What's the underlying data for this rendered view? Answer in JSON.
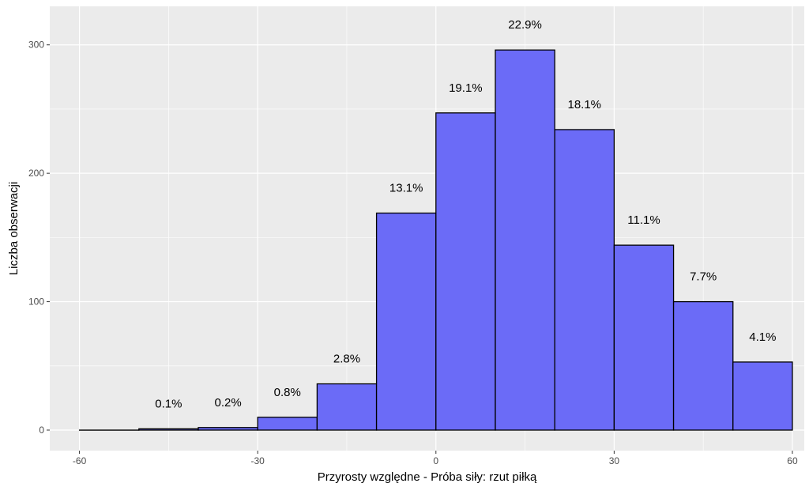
{
  "chart_data": {
    "type": "bar",
    "title": "",
    "xlabel": "Przyrosty względne -  Próba siły: rzut piłką",
    "ylabel": "Liczba obserwacji",
    "xlim": [
      -65,
      62
    ],
    "ylim": [
      -16,
      330
    ],
    "x_ticks": [
      -60,
      -30,
      0,
      30,
      60
    ],
    "y_ticks": [
      0,
      100,
      200,
      300
    ],
    "grid": true,
    "bins": [
      {
        "from": -60,
        "to": -50,
        "value": 0,
        "label": ""
      },
      {
        "from": -50,
        "to": -40,
        "value": 1,
        "label": "0.1%"
      },
      {
        "from": -40,
        "to": -30,
        "value": 2,
        "label": "0.2%"
      },
      {
        "from": -30,
        "to": -20,
        "value": 10,
        "label": "0.8%"
      },
      {
        "from": -20,
        "to": -10,
        "value": 36,
        "label": "2.8%"
      },
      {
        "from": -10,
        "to": 0,
        "value": 169,
        "label": "13.1%"
      },
      {
        "from": 0,
        "to": 10,
        "value": 247,
        "label": "19.1%"
      },
      {
        "from": 10,
        "to": 20,
        "value": 296,
        "label": "22.9%"
      },
      {
        "from": 20,
        "to": 30,
        "value": 234,
        "label": "18.1%"
      },
      {
        "from": 30,
        "to": 40,
        "value": 144,
        "label": "11.1%"
      },
      {
        "from": 40,
        "to": 50,
        "value": 100,
        "label": "7.7%"
      },
      {
        "from": 50,
        "to": 60,
        "value": 53,
        "label": "4.1%"
      }
    ],
    "colors": {
      "bar_fill": "#6b6bf7",
      "bar_stroke": "#000000",
      "panel": "#ebebeb",
      "grid": "#ffffff"
    }
  }
}
